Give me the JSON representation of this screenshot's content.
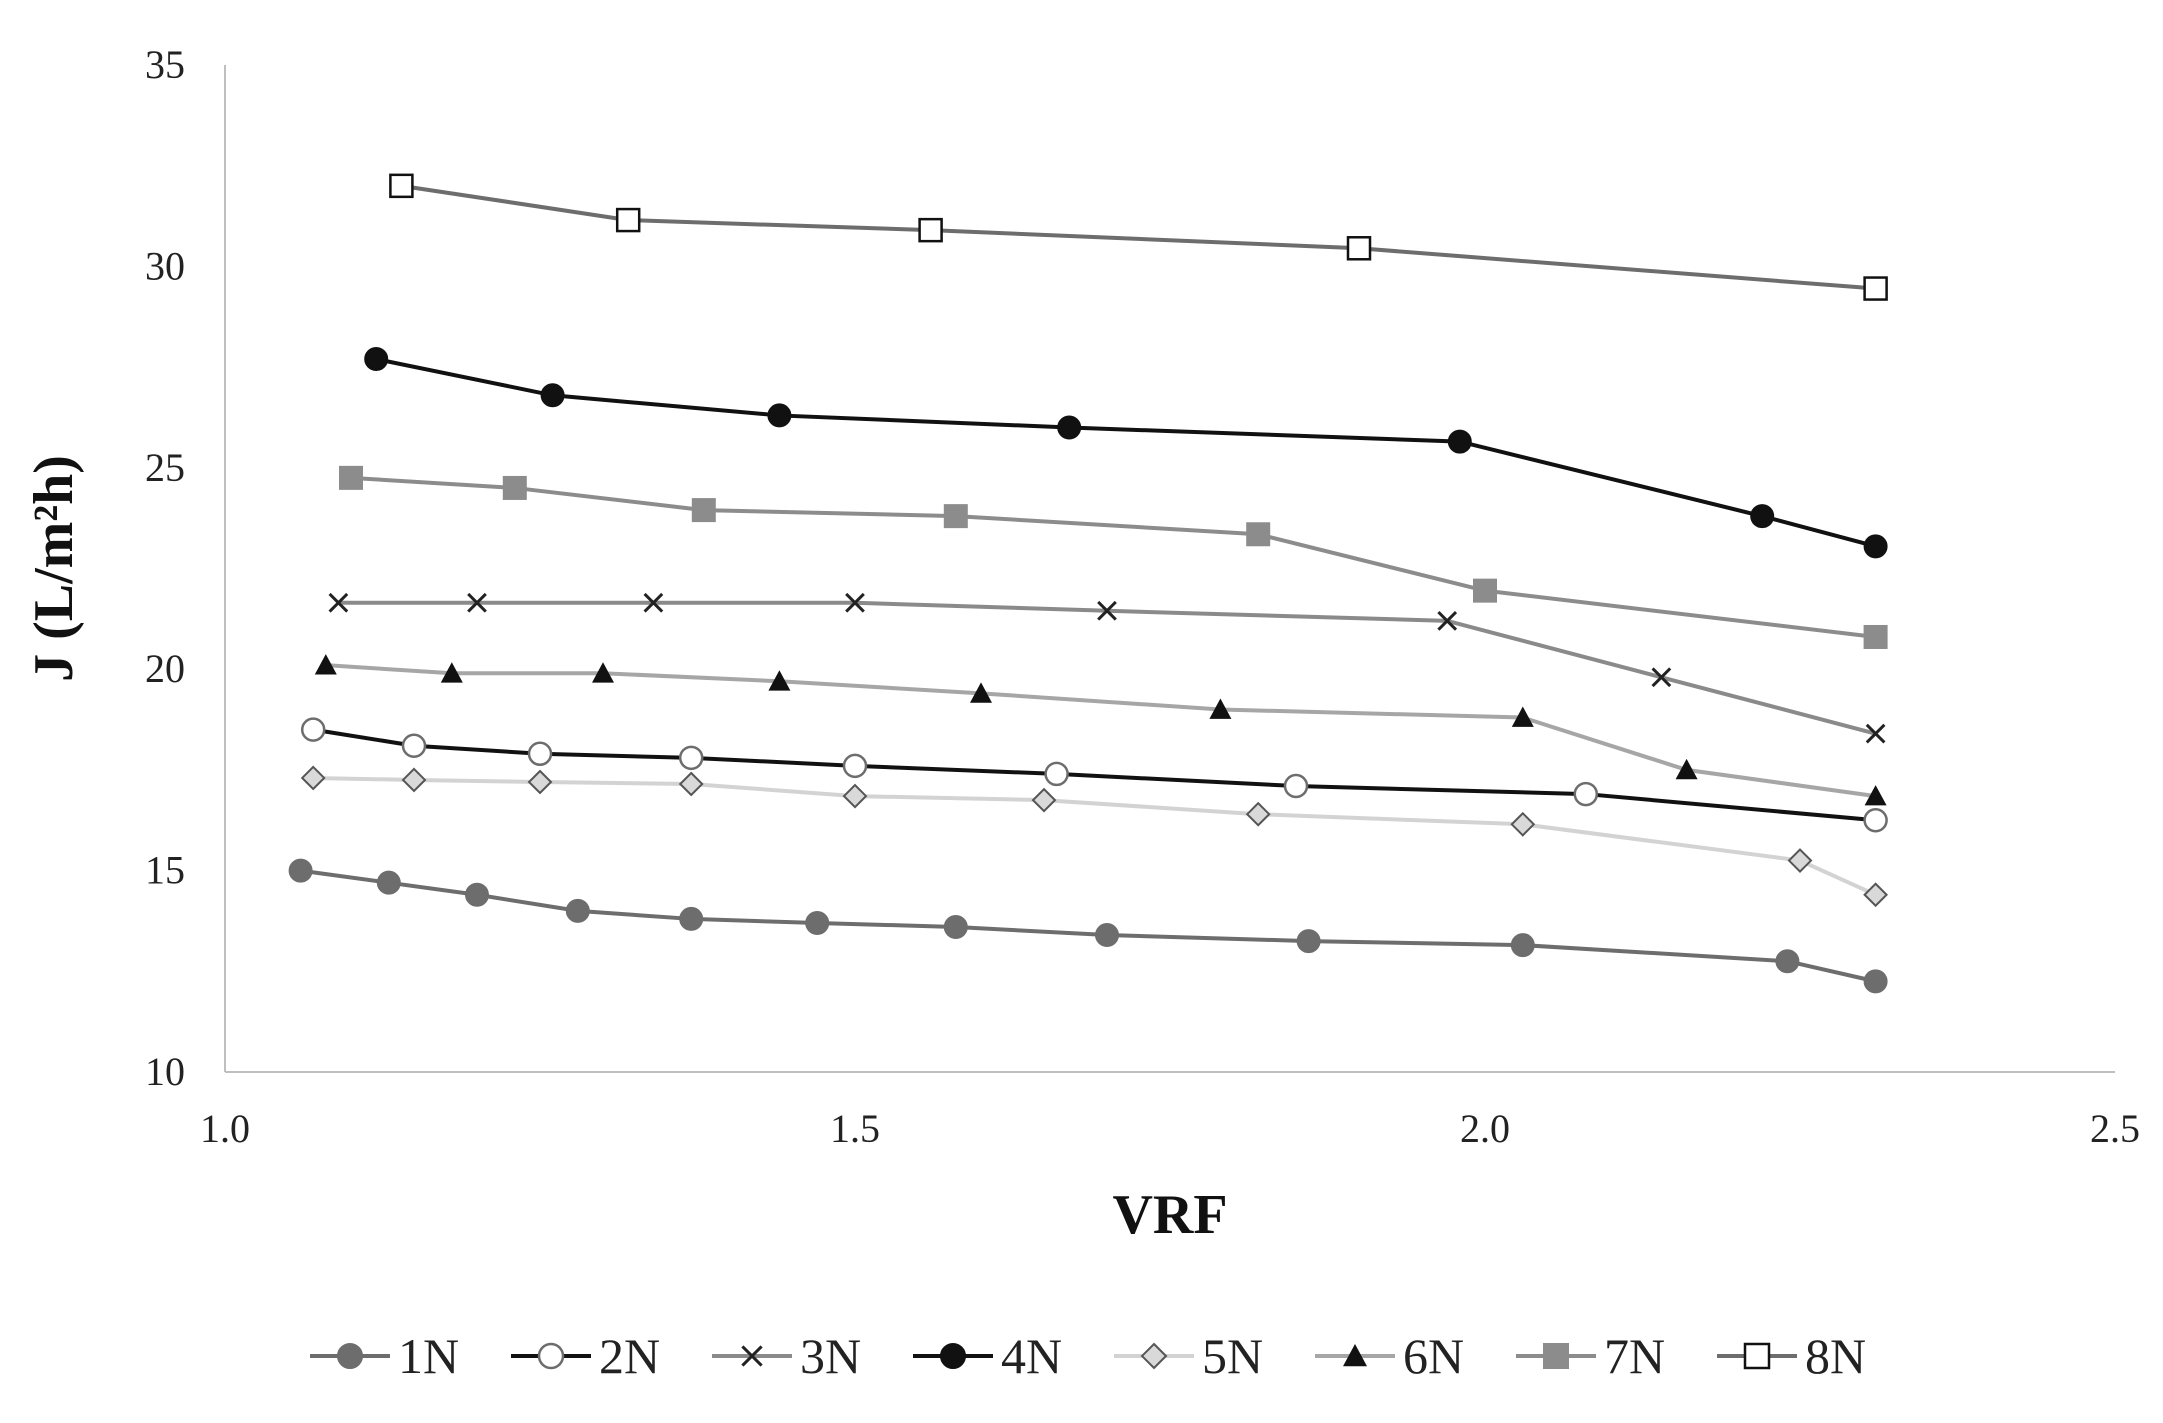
{
  "chart_data": {
    "type": "line",
    "title": "",
    "xlabel": "VRF",
    "ylabel": "J (L/m²h)",
    "xlim": [
      1.0,
      2.5
    ],
    "ylim": [
      10,
      35
    ],
    "x_ticks": [
      "1.0",
      "1.5",
      "2.0",
      "2.5"
    ],
    "y_ticks": [
      "10",
      "15",
      "20",
      "25",
      "30",
      "35"
    ],
    "grid": false,
    "legend_position": "bottom",
    "series": [
      {
        "name": "1N",
        "marker": "circle",
        "marker_fill": "#6d6d6d",
        "line_color": "#6d6d6d",
        "x": [
          1.06,
          1.13,
          1.2,
          1.28,
          1.37,
          1.47,
          1.58,
          1.7,
          1.86,
          2.03,
          2.24,
          2.31
        ],
        "y": [
          15.0,
          14.7,
          14.4,
          14.0,
          13.8,
          13.7,
          13.6,
          13.4,
          13.25,
          13.15,
          12.75,
          12.25
        ]
      },
      {
        "name": "2N",
        "marker": "circle-open",
        "marker_fill": "#ffffff",
        "line_color": "#111111",
        "x": [
          1.07,
          1.15,
          1.25,
          1.37,
          1.5,
          1.66,
          1.85,
          2.08,
          2.31
        ],
        "y": [
          18.5,
          18.1,
          17.9,
          17.8,
          17.6,
          17.4,
          17.1,
          16.9,
          16.25
        ]
      },
      {
        "name": "3N",
        "marker": "cross",
        "marker_fill": "#222222",
        "line_color": "#8a8a8a",
        "x": [
          1.09,
          1.2,
          1.34,
          1.5,
          1.7,
          1.97,
          2.14,
          2.31
        ],
        "y": [
          21.65,
          21.65,
          21.65,
          21.65,
          21.45,
          21.2,
          19.8,
          18.4
        ]
      },
      {
        "name": "4N",
        "marker": "circle",
        "marker_fill": "#111111",
        "line_color": "#111111",
        "x": [
          1.12,
          1.26,
          1.44,
          1.67,
          1.98,
          2.22,
          2.31
        ],
        "y": [
          27.7,
          26.8,
          26.3,
          26.0,
          25.65,
          23.8,
          23.05
        ]
      },
      {
        "name": "5N",
        "marker": "diamond-open",
        "marker_fill": "#d9d9d9",
        "line_color": "#d3d3d3",
        "x": [
          1.07,
          1.15,
          1.25,
          1.37,
          1.5,
          1.65,
          1.82,
          2.03,
          2.25,
          2.31
        ],
        "y": [
          17.3,
          17.25,
          17.2,
          17.15,
          16.85,
          16.75,
          16.4,
          16.15,
          15.25,
          14.4
        ]
      },
      {
        "name": "6N",
        "marker": "triangle",
        "marker_fill": "#111111",
        "line_color": "#a6a6a6",
        "x": [
          1.08,
          1.18,
          1.3,
          1.44,
          1.6,
          1.79,
          2.03,
          2.16,
          2.31
        ],
        "y": [
          20.1,
          19.9,
          19.9,
          19.7,
          19.4,
          19.0,
          18.8,
          17.5,
          16.85
        ]
      },
      {
        "name": "7N",
        "marker": "square",
        "marker_fill": "#8c8c8c",
        "line_color": "#8c8c8c",
        "x": [
          1.1,
          1.23,
          1.38,
          1.58,
          1.82,
          2.0,
          2.31
        ],
        "y": [
          24.75,
          24.5,
          23.95,
          23.8,
          23.35,
          21.95,
          20.8
        ]
      },
      {
        "name": "8N",
        "marker": "square-open",
        "marker_fill": "#ffffff",
        "line_color": "#6d6d6d",
        "x": [
          1.14,
          1.32,
          1.56,
          1.9,
          2.31
        ],
        "y": [
          32.0,
          31.15,
          30.9,
          30.45,
          29.45
        ]
      }
    ]
  }
}
